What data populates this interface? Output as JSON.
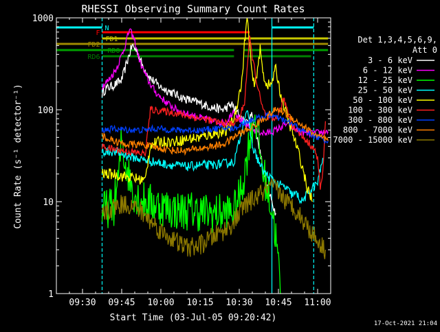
{
  "chart_data": {
    "type": "line",
    "title": "RHESSI Observing Summary Count Rates",
    "xlabel": "Start Time (03-Jul-05 09:20:42)",
    "ylabel": "Count Rate (s⁻¹ detector⁻¹)",
    "y_scale": "log",
    "ylim": [
      1,
      1000
    ],
    "xlim_minutes_after_0920": [
      0,
      105
    ],
    "x_ticks": [
      {
        "t": 10,
        "label": "09:30"
      },
      {
        "t": 25,
        "label": "09:45"
      },
      {
        "t": 40,
        "label": "10:00"
      },
      {
        "t": 55,
        "label": "10:15"
      },
      {
        "t": 70,
        "label": "10:30"
      },
      {
        "t": 85,
        "label": "10:45"
      },
      {
        "t": 100,
        "label": "11:00"
      }
    ],
    "y_ticks": [
      {
        "v": 1,
        "label": "1"
      },
      {
        "v": 10,
        "label": "10"
      },
      {
        "v": 100,
        "label": "100"
      },
      {
        "v": 1000,
        "label": "1000"
      }
    ],
    "legend_title": [
      "Det 1,3,4,5,6,9,",
      "Att 0"
    ],
    "legend_position": "right",
    "timestamp": "17-Oct-2021 21:04",
    "flags": [
      {
        "label": "N",
        "color": "#00ffff",
        "y": 1.0,
        "segments": [
          [
            0,
            17.5
          ],
          [
            82.5,
            98.5
          ]
        ]
      },
      {
        "label": "F",
        "color": "#ff0000",
        "y": 1.55,
        "segments": [
          [
            17.5,
            74
          ]
        ]
      },
      {
        "label": "FD1",
        "color": "#c8c800",
        "y": 2.35,
        "segments": [
          [
            17.5,
            104
          ]
        ]
      },
      {
        "label": "FD2",
        "color": "#a08c00",
        "y": 3.05,
        "segments": [
          [
            0,
            104
          ]
        ]
      },
      {
        "label": "RD0",
        "color": "#00a000",
        "y": 3.65,
        "segments": [
          [
            0,
            68
          ],
          [
            72,
            104
          ]
        ]
      },
      {
        "label": "RD6",
        "color": "#008000",
        "y": 4.45,
        "segments": [
          [
            17.5,
            68
          ],
          [
            72,
            97.5
          ]
        ]
      }
    ],
    "vlines": [
      {
        "t": 17.5,
        "color": "#00ffff",
        "dashed": true
      },
      {
        "t": 82.5,
        "color": "#00ffff",
        "dashed": false
      },
      {
        "t": 98.5,
        "color": "#00ffff",
        "dashed": true
      }
    ],
    "series": [
      {
        "name": "3 - 6 keV",
        "color": "#ffffff",
        "noise": 0.05,
        "points": [
          [
            17.5,
            150
          ],
          [
            19,
            170
          ],
          [
            22,
            185
          ],
          [
            25,
            210
          ],
          [
            27,
            330
          ],
          [
            29,
            500
          ],
          [
            31,
            430
          ],
          [
            33,
            300
          ],
          [
            36,
            220
          ],
          [
            40,
            175
          ],
          [
            44,
            155
          ],
          [
            48,
            135
          ],
          [
            52,
            125
          ],
          [
            56,
            115
          ],
          [
            60,
            105
          ],
          [
            64,
            100
          ],
          [
            67,
            115
          ],
          [
            69,
            95
          ],
          [
            71,
            80
          ],
          [
            73,
            70
          ],
          [
            75,
            90
          ],
          [
            78,
            35
          ],
          [
            80,
            16
          ],
          [
            83,
            9
          ],
          [
            84,
            7.5
          ]
        ]
      },
      {
        "name": "6 - 12 keV",
        "color": "#ff00ff",
        "noise": 0.04,
        "points": [
          [
            17.5,
            180
          ],
          [
            20,
            210
          ],
          [
            23,
            280
          ],
          [
            26,
            470
          ],
          [
            28,
            750
          ],
          [
            30,
            560
          ],
          [
            32,
            330
          ],
          [
            35,
            210
          ],
          [
            38,
            155
          ],
          [
            42,
            120
          ],
          [
            46,
            100
          ],
          [
            50,
            90
          ],
          [
            55,
            82
          ],
          [
            60,
            75
          ],
          [
            65,
            72
          ],
          [
            68,
            100
          ],
          [
            70,
            80
          ],
          [
            73,
            65
          ],
          [
            76,
            60
          ],
          [
            80,
            55
          ],
          [
            84,
            60
          ],
          [
            88,
            70
          ],
          [
            92,
            60
          ],
          [
            95,
            55
          ],
          [
            98,
            55
          ],
          [
            104,
            58
          ]
        ]
      },
      {
        "name": "12 - 25 keV",
        "color": "#00ff00",
        "noise": 0.22,
        "points": [
          [
            17.5,
            8
          ],
          [
            22,
            9
          ],
          [
            24,
            20
          ],
          [
            25,
            50
          ],
          [
            26,
            30
          ],
          [
            28,
            18
          ],
          [
            30,
            12
          ],
          [
            34,
            10
          ],
          [
            40,
            9
          ],
          [
            46,
            8
          ],
          [
            52,
            8
          ],
          [
            58,
            7.5
          ],
          [
            64,
            7.5
          ],
          [
            68,
            8
          ],
          [
            70,
            11
          ],
          [
            72,
            20
          ],
          [
            74,
            50
          ],
          [
            76,
            90
          ],
          [
            77,
            55
          ],
          [
            79,
            22
          ],
          [
            81,
            13
          ],
          [
            83,
            7
          ],
          [
            84,
            4
          ],
          [
            85,
            2
          ],
          [
            86,
            1
          ]
        ]
      },
      {
        "name": "25 - 50 keV",
        "color": "#00ffff",
        "noise": 0.05,
        "points": [
          [
            17.5,
            35
          ],
          [
            22,
            35
          ],
          [
            25,
            33
          ],
          [
            30,
            30
          ],
          [
            35,
            28
          ],
          [
            40,
            26
          ],
          [
            45,
            25
          ],
          [
            50,
            24
          ],
          [
            55,
            25
          ],
          [
            60,
            25
          ],
          [
            64,
            26
          ],
          [
            68,
            27
          ],
          [
            70,
            45
          ],
          [
            72,
            85
          ],
          [
            73,
            100
          ],
          [
            75,
            40
          ],
          [
            78,
            25
          ],
          [
            80,
            20
          ],
          [
            82,
            18
          ],
          [
            84,
            16
          ],
          [
            86,
            15
          ],
          [
            88,
            14
          ],
          [
            90,
            12
          ],
          [
            92,
            12
          ],
          [
            94,
            10
          ],
          [
            96,
            12
          ],
          [
            98,
            14
          ],
          [
            100,
            16
          ],
          [
            101,
            22
          ],
          [
            102,
            30
          ]
        ]
      },
      {
        "name": "50 - 100 keV",
        "color": "#ffff00",
        "noise": 0.06,
        "points": [
          [
            17.5,
            20
          ],
          [
            22,
            20
          ],
          [
            25,
            19
          ],
          [
            30,
            18
          ],
          [
            34,
            17
          ],
          [
            36,
            42
          ],
          [
            40,
            45
          ],
          [
            45,
            45
          ],
          [
            50,
            48
          ],
          [
            55,
            50
          ],
          [
            60,
            55
          ],
          [
            65,
            58
          ],
          [
            68,
            80
          ],
          [
            71,
            200
          ],
          [
            72,
            520
          ],
          [
            73,
            1000
          ],
          [
            74,
            500
          ],
          [
            75,
            220
          ],
          [
            76,
            180
          ],
          [
            78,
            450
          ],
          [
            79,
            260
          ],
          [
            80,
            200
          ],
          [
            82,
            180
          ],
          [
            84,
            280
          ],
          [
            86,
            140
          ],
          [
            88,
            90
          ],
          [
            90,
            60
          ],
          [
            92,
            40
          ],
          [
            94,
            25
          ],
          [
            96,
            14
          ],
          [
            97,
            12
          ],
          [
            98,
            10
          ]
        ]
      },
      {
        "name": "100 - 300 keV",
        "color": "#ff2020",
        "noise": 0.04,
        "points": [
          [
            17.5,
            40
          ],
          [
            20,
            38
          ],
          [
            23,
            37
          ],
          [
            25,
            36
          ],
          [
            28,
            35
          ],
          [
            31,
            34
          ],
          [
            34,
            33
          ],
          [
            36,
            100
          ],
          [
            39,
            98
          ],
          [
            43,
            95
          ],
          [
            47,
            90
          ],
          [
            51,
            85
          ],
          [
            55,
            80
          ],
          [
            58,
            78
          ],
          [
            60,
            75
          ],
          [
            63,
            72
          ],
          [
            66,
            70
          ],
          [
            68,
            72
          ],
          [
            70,
            80
          ],
          [
            72,
            120
          ],
          [
            73,
            280
          ],
          [
            74,
            600
          ],
          [
            75,
            380
          ],
          [
            77,
            180
          ],
          [
            79,
            100
          ],
          [
            81,
            80
          ],
          [
            83,
            75
          ],
          [
            85,
            90
          ],
          [
            87,
            130
          ],
          [
            88,
            110
          ],
          [
            90,
            70
          ],
          [
            92,
            60
          ],
          [
            94,
            52
          ],
          [
            96,
            45
          ],
          [
            98,
            40
          ],
          [
            100,
            30
          ],
          [
            101,
            14
          ],
          [
            102,
            20
          ],
          [
            103,
            75
          ]
        ]
      },
      {
        "name": "300 - 800 keV",
        "color": "#0040ff",
        "noise": 0.035,
        "points": [
          [
            17.5,
            60
          ],
          [
            22,
            62
          ],
          [
            25,
            61
          ],
          [
            30,
            60
          ],
          [
            34,
            60
          ],
          [
            36,
            62
          ],
          [
            40,
            62
          ],
          [
            45,
            60
          ],
          [
            50,
            60
          ],
          [
            55,
            60
          ],
          [
            60,
            62
          ],
          [
            65,
            63
          ],
          [
            68,
            62
          ],
          [
            71,
            70
          ],
          [
            73,
            75
          ],
          [
            75,
            78
          ],
          [
            78,
            82
          ],
          [
            82,
            88
          ],
          [
            85,
            80
          ],
          [
            88,
            75
          ],
          [
            91,
            68
          ],
          [
            94,
            60
          ],
          [
            97,
            55
          ],
          [
            100,
            50
          ],
          [
            104,
            46
          ]
        ]
      },
      {
        "name": "800 - 7000 keV",
        "color": "#ff8000",
        "noise": 0.04,
        "points": [
          [
            17.5,
            52
          ],
          [
            20,
            48
          ],
          [
            23,
            45
          ],
          [
            26,
            42
          ],
          [
            30,
            42
          ],
          [
            33,
            42
          ],
          [
            36,
            40
          ],
          [
            40,
            38
          ],
          [
            45,
            36
          ],
          [
            50,
            36
          ],
          [
            55,
            38
          ],
          [
            60,
            40
          ],
          [
            64,
            42
          ],
          [
            67,
            48
          ],
          [
            70,
            55
          ],
          [
            73,
            60
          ],
          [
            76,
            68
          ],
          [
            80,
            82
          ],
          [
            84,
            100
          ],
          [
            87,
            95
          ],
          [
            90,
            82
          ],
          [
            94,
            68
          ],
          [
            98,
            56
          ],
          [
            101,
            50
          ],
          [
            104,
            46
          ]
        ]
      },
      {
        "name": "7000 - 15000 keV",
        "color": "#8c7800",
        "noise": 0.11,
        "points": [
          [
            17.5,
            7
          ],
          [
            20,
            8
          ],
          [
            23,
            9
          ],
          [
            26,
            9.5
          ],
          [
            29,
            9
          ],
          [
            32,
            8
          ],
          [
            35,
            6.5
          ],
          [
            38,
            5.5
          ],
          [
            41,
            4.5
          ],
          [
            44,
            4
          ],
          [
            47,
            3.5
          ],
          [
            50,
            3.2
          ],
          [
            53,
            3.2
          ],
          [
            56,
            3.5
          ],
          [
            59,
            4
          ],
          [
            62,
            4.5
          ],
          [
            65,
            5
          ],
          [
            68,
            6
          ],
          [
            70,
            7.5
          ],
          [
            72,
            9
          ],
          [
            74,
            10
          ],
          [
            76,
            11
          ],
          [
            78,
            12
          ],
          [
            80,
            13
          ],
          [
            82,
            14
          ],
          [
            84,
            14
          ],
          [
            86,
            12
          ],
          [
            88,
            10
          ],
          [
            90,
            9
          ],
          [
            92,
            8
          ],
          [
            94,
            6.5
          ],
          [
            96,
            5.5
          ],
          [
            98,
            4.5
          ],
          [
            101,
            3.5
          ],
          [
            103,
            3
          ]
        ]
      }
    ]
  }
}
